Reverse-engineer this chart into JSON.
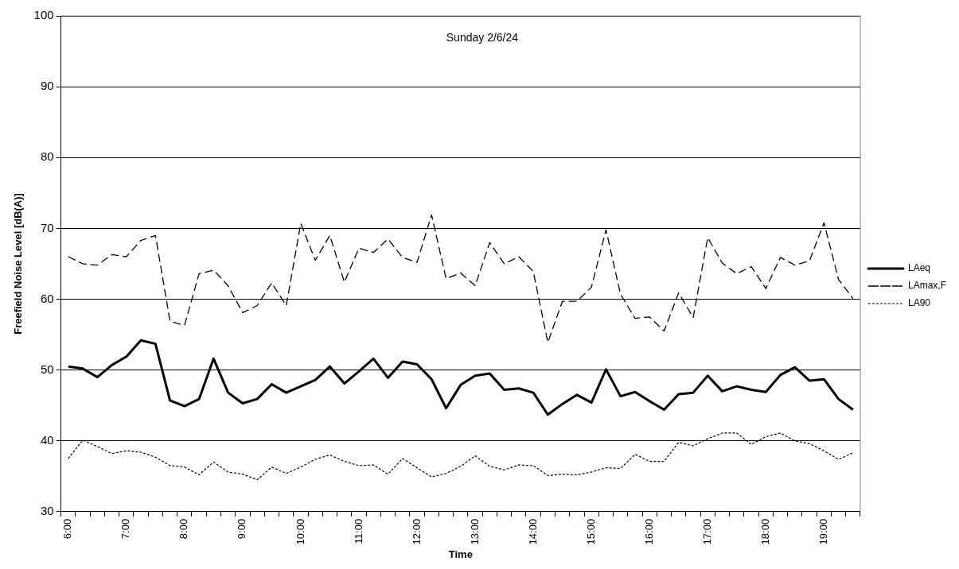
{
  "chart_data": {
    "type": "line",
    "title": "Sunday 2/6/24",
    "xlabel": "Time",
    "ylabel": "Freefield Noise Level [dB(A)]",
    "categories": [
      "6:00",
      null,
      null,
      null,
      "7:00",
      null,
      null,
      null,
      "8:00",
      null,
      null,
      null,
      "9:00",
      null,
      null,
      null,
      "10:00",
      null,
      null,
      null,
      "11:00",
      null,
      null,
      null,
      "12:00",
      null,
      null,
      null,
      "13:00",
      null,
      null,
      null,
      "14:00",
      null,
      null,
      null,
      "15:00",
      null,
      null,
      null,
      "16:00",
      null,
      null,
      null,
      "17:00",
      null,
      null,
      null,
      "18:00",
      null,
      null,
      null,
      "19:00",
      null,
      null
    ],
    "series": [
      {
        "name": "LAeq",
        "color": "#000000",
        "line_style": "solid",
        "values": [
          50.5,
          50.2,
          49.0,
          50.7,
          51.9,
          54.2,
          53.7,
          45.7,
          44.9,
          45.9,
          51.6,
          46.8,
          45.3,
          45.9,
          48.0,
          46.8,
          47.7,
          48.6,
          50.5,
          48.1,
          49.8,
          51.6,
          48.9,
          51.2,
          50.8,
          48.7,
          44.6,
          47.9,
          49.2,
          49.5,
          47.2,
          47.4,
          46.8,
          43.7,
          45.2,
          46.5,
          45.4,
          50.1,
          46.3,
          46.9,
          45.6,
          44.4,
          46.6,
          46.8,
          49.2,
          47.0,
          47.7,
          47.2,
          46.9,
          49.3,
          50.4,
          48.5,
          48.7,
          45.9,
          44.4
        ]
      },
      {
        "name": "LAmax,F",
        "color": "#000000",
        "line_style": "dashed",
        "values": [
          66.0,
          65.0,
          64.8,
          66.3,
          66.0,
          68.3,
          69.0,
          56.9,
          56.3,
          63.6,
          64.1,
          61.9,
          58.1,
          59.1,
          62.3,
          59.1,
          70.7,
          65.5,
          69.0,
          62.4,
          67.2,
          66.6,
          68.5,
          65.9,
          65.2,
          71.9,
          62.9,
          63.7,
          61.9,
          68.0,
          65.0,
          66.0,
          63.9,
          53.9,
          59.7,
          59.7,
          61.7,
          69.8,
          60.7,
          57.3,
          57.5,
          55.5,
          60.9,
          57.4,
          68.7,
          65.1,
          63.6,
          64.6,
          61.5,
          65.9,
          64.8,
          65.4,
          70.8,
          62.8,
          60.1
        ]
      },
      {
        "name": "LA90",
        "color": "#000000",
        "line_style": "dotted",
        "values": [
          37.5,
          40.1,
          39.2,
          38.2,
          38.6,
          38.4,
          37.7,
          36.5,
          36.3,
          35.2,
          37.0,
          35.6,
          35.3,
          34.5,
          36.3,
          35.4,
          36.3,
          37.4,
          38.0,
          37.1,
          36.5,
          36.6,
          35.3,
          37.5,
          36.2,
          34.9,
          35.4,
          36.4,
          37.9,
          36.4,
          35.9,
          36.6,
          36.5,
          35.1,
          35.3,
          35.2,
          35.6,
          36.2,
          36.1,
          38.1,
          37.1,
          37.1,
          39.8,
          39.3,
          40.3,
          41.1,
          41.1,
          39.5,
          40.6,
          41.1,
          40.0,
          39.6,
          38.6,
          37.4,
          38.3
        ]
      }
    ],
    "ylim": [
      30,
      100
    ],
    "yticks": [
      30,
      40,
      50,
      60,
      70,
      80,
      90,
      100
    ],
    "grid": "y",
    "legend": "right",
    "marker": "none"
  }
}
